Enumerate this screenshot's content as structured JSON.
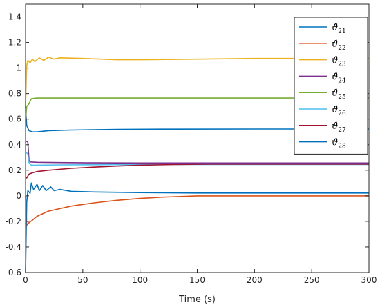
{
  "chart_data": {
    "type": "line",
    "title": "",
    "xlabel": "Time (s)",
    "ylabel": "",
    "xlim": [
      0,
      300
    ],
    "ylim": [
      -0.6,
      1.5
    ],
    "xticks": [
      0,
      50,
      100,
      150,
      200,
      250,
      300
    ],
    "xtick_labels": [
      "0",
      "50",
      "100",
      "150",
      "200",
      "250",
      "300"
    ],
    "yticks": [
      -0.6,
      -0.4,
      -0.2,
      0,
      0.2,
      0.4,
      0.6,
      0.8,
      1,
      1.2,
      1.4
    ],
    "ytick_labels": [
      "-0.6",
      "-0.4",
      "-0.2",
      "0",
      "0.2",
      "0.4",
      "0.6",
      "0.8",
      "1",
      "1.2",
      "1.4"
    ],
    "grid": false,
    "legend_position": "top-right",
    "series": [
      {
        "name": "ϑ̂21",
        "sub": "21",
        "color": "#0072BD",
        "points": [
          [
            0,
            0.7
          ],
          [
            1,
            0.55
          ],
          [
            3,
            0.51
          ],
          [
            6,
            0.5
          ],
          [
            10,
            0.5
          ],
          [
            20,
            0.51
          ],
          [
            40,
            0.515
          ],
          [
            80,
            0.52
          ],
          [
            120,
            0.522
          ],
          [
            200,
            0.523
          ],
          [
            300,
            0.523
          ]
        ]
      },
      {
        "name": "ϑ̂22",
        "sub": "22",
        "color": "#D95319",
        "points": [
          [
            0,
            0.0
          ],
          [
            1,
            -0.23
          ],
          [
            3,
            -0.21
          ],
          [
            6,
            -0.19
          ],
          [
            10,
            -0.16
          ],
          [
            20,
            -0.12
          ],
          [
            40,
            -0.08
          ],
          [
            60,
            -0.055
          ],
          [
            80,
            -0.035
          ],
          [
            100,
            -0.02
          ],
          [
            120,
            -0.01
          ],
          [
            150,
            0.0
          ],
          [
            200,
            0.0
          ],
          [
            300,
            0.0
          ]
        ]
      },
      {
        "name": "ϑ̂23",
        "sub": "23",
        "color": "#EDB120",
        "points": [
          [
            0,
            0.7
          ],
          [
            1,
            1.02
          ],
          [
            2,
            1.06
          ],
          [
            4,
            1.04
          ],
          [
            6,
            1.07
          ],
          [
            8,
            1.05
          ],
          [
            12,
            1.08
          ],
          [
            16,
            1.06
          ],
          [
            20,
            1.085
          ],
          [
            25,
            1.07
          ],
          [
            30,
            1.08
          ],
          [
            50,
            1.075
          ],
          [
            80,
            1.065
          ],
          [
            100,
            1.065
          ],
          [
            150,
            1.07
          ],
          [
            200,
            1.075
          ],
          [
            300,
            1.075
          ]
        ]
      },
      {
        "name": "ϑ̂24",
        "sub": "24",
        "color": "#7E2F8E",
        "points": [
          [
            0,
            0.43
          ],
          [
            2,
            0.42
          ],
          [
            3,
            0.28
          ],
          [
            4,
            0.265
          ],
          [
            10,
            0.262
          ],
          [
            30,
            0.26
          ],
          [
            60,
            0.258
          ],
          [
            100,
            0.257
          ],
          [
            300,
            0.257
          ]
        ]
      },
      {
        "name": "ϑ̂25",
        "sub": "25",
        "color": "#77AC30",
        "points": [
          [
            0,
            0.58
          ],
          [
            1,
            0.7
          ],
          [
            3,
            0.72
          ],
          [
            5,
            0.76
          ],
          [
            10,
            0.765
          ],
          [
            50,
            0.765
          ],
          [
            300,
            0.765
          ]
        ]
      },
      {
        "name": "ϑ̂26",
        "sub": "26",
        "color": "#4DBEEE",
        "points": [
          [
            0,
            0.34
          ],
          [
            2,
            0.33
          ],
          [
            3,
            0.26
          ],
          [
            5,
            0.24
          ],
          [
            10,
            0.24
          ],
          [
            30,
            0.242
          ],
          [
            60,
            0.243
          ],
          [
            100,
            0.245
          ],
          [
            300,
            0.245
          ]
        ]
      },
      {
        "name": "ϑ̂27",
        "sub": "27",
        "color": "#A2142F",
        "points": [
          [
            0,
            0.15
          ],
          [
            1,
            0.14
          ],
          [
            3,
            0.17
          ],
          [
            6,
            0.18
          ],
          [
            10,
            0.19
          ],
          [
            20,
            0.2
          ],
          [
            40,
            0.215
          ],
          [
            60,
            0.225
          ],
          [
            80,
            0.233
          ],
          [
            100,
            0.24
          ],
          [
            130,
            0.245
          ],
          [
            160,
            0.248
          ],
          [
            300,
            0.248
          ]
        ]
      },
      {
        "name": "ϑ̂28",
        "sub": "28",
        "color": "#0072BD",
        "points": [
          [
            0,
            -0.6
          ],
          [
            1,
            -0.05
          ],
          [
            2,
            0.04
          ],
          [
            4,
            0.02
          ],
          [
            5,
            0.1
          ],
          [
            7,
            0.05
          ],
          [
            10,
            0.09
          ],
          [
            12,
            0.04
          ],
          [
            15,
            0.08
          ],
          [
            18,
            0.04
          ],
          [
            22,
            0.07
          ],
          [
            25,
            0.04
          ],
          [
            30,
            0.05
          ],
          [
            40,
            0.035
          ],
          [
            60,
            0.03
          ],
          [
            100,
            0.025
          ],
          [
            150,
            0.022
          ],
          [
            300,
            0.022
          ]
        ]
      }
    ]
  }
}
